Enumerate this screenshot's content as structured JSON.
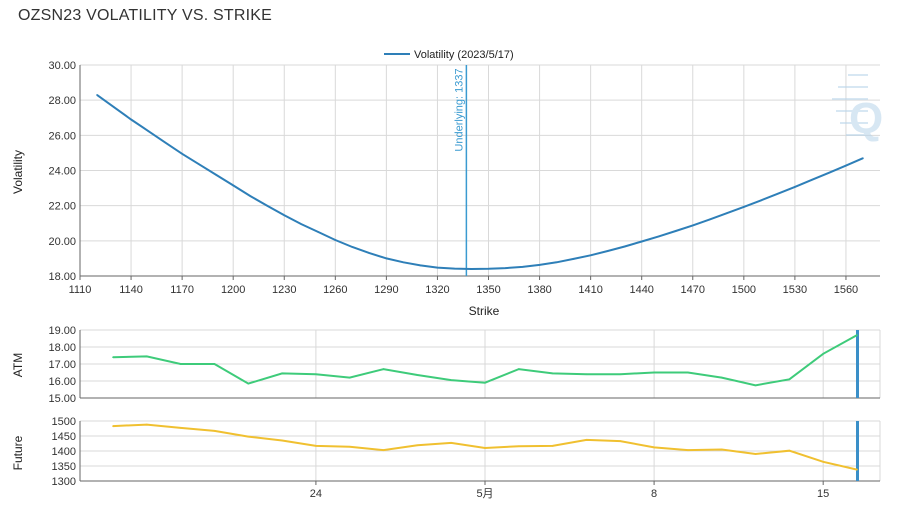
{
  "title": "OZSN23 VOLATILITY VS. STRIKE",
  "colors": {
    "volatility_line": "#2e7fb8",
    "underlying_line": "#3a9ad0",
    "atm_line": "#3ecb7a",
    "future_line": "#f0c030",
    "marker": "#3a8fc8",
    "grid": "#d9d9d9",
    "axis": "#666666",
    "watermark": "#b8d4ea"
  },
  "watermark": {
    "icon": "q-logo-icon",
    "letter": "Q"
  },
  "chart_data": [
    {
      "type": "line",
      "title": "",
      "xlabel": "Strike",
      "ylabel": "Volatility",
      "legend": {
        "position": "top-center",
        "entries": [
          "Volatility (2023/5/17)"
        ]
      },
      "xlim": [
        1110,
        1580
      ],
      "ylim": [
        18,
        30
      ],
      "grid": true,
      "x_ticks": [
        1110,
        1140,
        1170,
        1200,
        1230,
        1260,
        1290,
        1320,
        1350,
        1380,
        1410,
        1440,
        1470,
        1500,
        1530,
        1560
      ],
      "y_ticks": [
        "18.00",
        "20.00",
        "22.00",
        "24.00",
        "26.00",
        "28.00",
        "30.00"
      ],
      "annotation": {
        "label": "Underlying: 1337",
        "x": 1337
      },
      "series": [
        {
          "name": "Volatility (2023/5/17)",
          "x": [
            1120,
            1130,
            1140,
            1150,
            1160,
            1170,
            1180,
            1190,
            1200,
            1210,
            1220,
            1230,
            1240,
            1250,
            1260,
            1270,
            1280,
            1290,
            1300,
            1310,
            1320,
            1330,
            1340,
            1350,
            1360,
            1370,
            1380,
            1390,
            1400,
            1410,
            1420,
            1430,
            1440,
            1450,
            1460,
            1470,
            1480,
            1490,
            1500,
            1510,
            1520,
            1530,
            1540,
            1550,
            1560,
            1570
          ],
          "y": [
            28.3,
            27.6,
            26.9,
            26.25,
            25.6,
            24.95,
            24.35,
            23.75,
            23.15,
            22.55,
            22.0,
            21.45,
            20.95,
            20.5,
            20.05,
            19.65,
            19.3,
            19.0,
            18.78,
            18.6,
            18.48,
            18.42,
            18.4,
            18.41,
            18.45,
            18.52,
            18.63,
            18.78,
            18.97,
            19.18,
            19.42,
            19.68,
            19.96,
            20.25,
            20.56,
            20.88,
            21.22,
            21.57,
            21.93,
            22.3,
            22.68,
            23.07,
            23.47,
            23.87,
            24.28,
            24.7
          ]
        }
      ]
    },
    {
      "type": "line",
      "title": "",
      "xlabel": "",
      "ylabel": "ATM",
      "ylim": [
        15,
        19
      ],
      "grid": true,
      "y_ticks": [
        "15.00",
        "16.00",
        "17.00",
        "18.00",
        "19.00"
      ],
      "series": [
        {
          "name": "",
          "values": [
            17.4,
            17.45,
            17.0,
            17.0,
            15.85,
            16.45,
            16.4,
            16.2,
            16.7,
            16.35,
            16.05,
            15.9,
            16.7,
            16.45,
            16.4,
            16.4,
            16.5,
            16.5,
            16.2,
            15.75,
            16.1,
            17.6,
            18.7
          ]
        }
      ]
    },
    {
      "type": "line",
      "title": "",
      "xlabel": "",
      "ylabel": "Future",
      "ylim": [
        1300,
        1500
      ],
      "grid": true,
      "y_ticks": [
        "1300",
        "1350",
        "1400",
        "1450",
        "1500"
      ],
      "x_tick_labels": [
        {
          "label": "24",
          "index": 6
        },
        {
          "label": "5月",
          "index": 11
        },
        {
          "label": "8",
          "index": 16
        },
        {
          "label": "15",
          "index": 21
        }
      ],
      "series": [
        {
          "name": "",
          "values": [
            1483,
            1488,
            1477,
            1467,
            1448,
            1435,
            1417,
            1414,
            1403,
            1419,
            1427,
            1410,
            1416,
            1417,
            1437,
            1433,
            1412,
            1403,
            1405,
            1390,
            1401,
            1364,
            1338
          ]
        }
      ]
    }
  ]
}
